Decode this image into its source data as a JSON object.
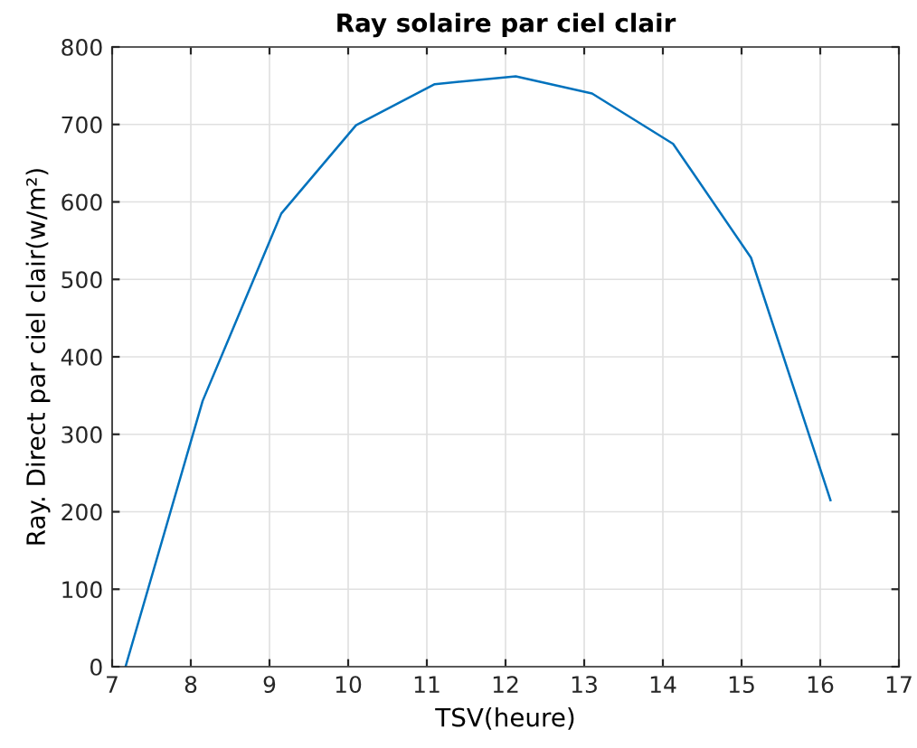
{
  "chart_data": {
    "type": "line",
    "title": "Ray solaire par ciel clair",
    "xlabel": "TSV(heure)",
    "ylabel": "Ray. Direct par ciel clair(w/m²)",
    "x": [
      7.17,
      8.15,
      9.15,
      10.1,
      11.1,
      12.13,
      13.1,
      14.13,
      15.12,
      16.13
    ],
    "series": [
      {
        "color": "#0072bd",
        "values": [
          0,
          343,
          585,
          699,
          752,
          762,
          740,
          675,
          528,
          215
        ]
      }
    ],
    "xlim": [
      7,
      17
    ],
    "xticks": [
      7,
      8,
      9,
      10,
      11,
      12,
      13,
      14,
      15,
      16,
      17
    ],
    "ylim": [
      0,
      800
    ],
    "yticks": [
      0,
      100,
      200,
      300,
      400,
      500,
      600,
      700,
      800
    ],
    "grid": true,
    "marker": "none",
    "line_style": "solid"
  }
}
